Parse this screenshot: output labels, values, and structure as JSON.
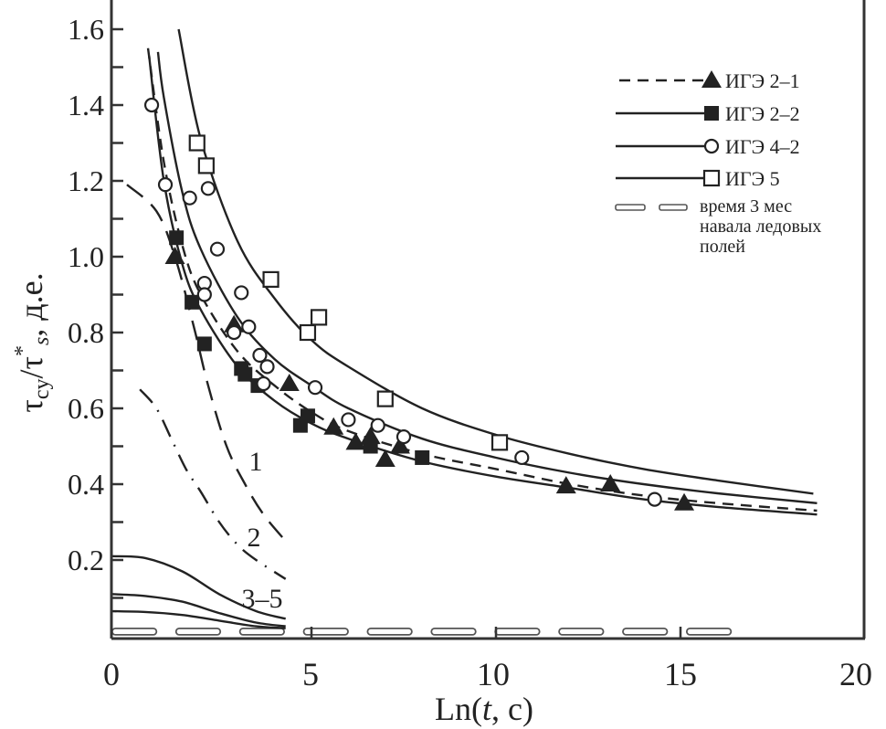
{
  "chart_data": {
    "type": "scatter",
    "xlabel": "Ln(t, с)",
    "ylabel_parts": [
      "τ",
      "cy",
      "/τ",
      "*",
      "s",
      ", д.е."
    ],
    "xlim": [
      0,
      20
    ],
    "ylim": [
      0,
      1.6
    ],
    "x_ticks": [
      "0",
      "5",
      "10",
      "15",
      "20"
    ],
    "y_ticks": [
      "0.2",
      "0.4",
      "0.6",
      "0.8",
      "1.0",
      "1.2",
      "1.4",
      "1.6"
    ],
    "grid": false,
    "legend_position": "top-right",
    "legend": [
      {
        "label": "ИГЭ 2–1",
        "marker": "filled-triangle",
        "line": "dashed"
      },
      {
        "label": "ИГЭ 2–2",
        "marker": "filled-square",
        "line": "solid"
      },
      {
        "label": "ИГЭ 4–2",
        "marker": "open-circle",
        "line": "solid"
      },
      {
        "label": "ИГЭ 5",
        "marker": "open-square",
        "line": "solid"
      },
      {
        "label": "время 3 мес навала ледовых полей",
        "label_lines": [
          "время 3 мес",
          "навала ледовых",
          "полей"
        ],
        "line": "double-dashed"
      }
    ],
    "series": [
      {
        "name": "ИГЭ 2–1",
        "marker": "filled-triangle",
        "points": [
          [
            1.3,
            1.0
          ],
          [
            2.9,
            0.82
          ],
          [
            4.4,
            0.665
          ],
          [
            5.6,
            0.55
          ],
          [
            6.2,
            0.51
          ],
          [
            6.6,
            0.525
          ],
          [
            7.0,
            0.465
          ],
          [
            7.4,
            0.5
          ],
          [
            11.9,
            0.395
          ],
          [
            13.1,
            0.4
          ],
          [
            15.1,
            0.35
          ]
        ],
        "fit": {
          "style": "dashed",
          "points": [
            [
              0.57,
              1.55
            ],
            [
              1,
              1.25
            ],
            [
              1.5,
              1.03
            ],
            [
              2,
              0.9
            ],
            [
              3,
              0.75
            ],
            [
              4,
              0.66
            ],
            [
              5,
              0.59
            ],
            [
              6,
              0.54
            ],
            [
              8,
              0.48
            ],
            [
              10,
              0.44
            ],
            [
              12,
              0.4
            ],
            [
              14,
              0.37
            ],
            [
              16,
              0.35
            ],
            [
              18.7,
              0.33
            ]
          ]
        }
      },
      {
        "name": "ИГЭ 2–2",
        "marker": "filled-square",
        "points": [
          [
            1.34,
            1.05
          ],
          [
            1.76,
            0.88
          ],
          [
            2.1,
            0.77
          ],
          [
            3.1,
            0.705
          ],
          [
            3.2,
            0.69
          ],
          [
            3.55,
            0.66
          ],
          [
            4.7,
            0.555
          ],
          [
            4.9,
            0.58
          ],
          [
            6.6,
            0.5
          ],
          [
            8.0,
            0.47
          ]
        ],
        "fit": {
          "style": "solid",
          "points": [
            [
              0.6,
              1.53
            ],
            [
              1,
              1.2
            ],
            [
              1.5,
              0.98
            ],
            [
              2,
              0.86
            ],
            [
              3,
              0.71
            ],
            [
              4,
              0.62
            ],
            [
              5,
              0.56
            ],
            [
              6,
              0.52
            ],
            [
              8,
              0.46
            ],
            [
              10,
              0.42
            ],
            [
              12,
              0.39
            ],
            [
              14,
              0.36
            ],
            [
              16,
              0.34
            ],
            [
              18.7,
              0.32
            ]
          ]
        }
      },
      {
        "name": "ИГЭ 4–2",
        "marker": "open-circle",
        "points": [
          [
            0.67,
            1.4
          ],
          [
            1.04,
            1.19
          ],
          [
            1.7,
            1.155
          ],
          [
            2.2,
            1.18
          ],
          [
            2.45,
            1.02
          ],
          [
            2.1,
            0.93
          ],
          [
            2.1,
            0.9
          ],
          [
            3.1,
            0.905
          ],
          [
            2.9,
            0.8
          ],
          [
            3.3,
            0.815
          ],
          [
            3.6,
            0.74
          ],
          [
            3.8,
            0.71
          ],
          [
            3.7,
            0.665
          ],
          [
            5.1,
            0.655
          ],
          [
            6.0,
            0.57
          ],
          [
            6.8,
            0.555
          ],
          [
            7.5,
            0.525
          ],
          [
            10.7,
            0.47
          ],
          [
            14.3,
            0.36
          ]
        ],
        "fit": {
          "style": "solid",
          "points": [
            [
              0.84,
              1.54
            ],
            [
              1,
              1.42
            ],
            [
              1.5,
              1.17
            ],
            [
              2,
              1.02
            ],
            [
              3,
              0.84
            ],
            [
              4,
              0.73
            ],
            [
              5,
              0.66
            ],
            [
              6,
              0.6
            ],
            [
              8,
              0.52
            ],
            [
              10,
              0.47
            ],
            [
              12,
              0.43
            ],
            [
              14,
              0.4
            ],
            [
              16,
              0.376
            ],
            [
              18.7,
              0.35
            ]
          ]
        }
      },
      {
        "name": "ИГЭ 5",
        "marker": "open-square",
        "points": [
          [
            1.9,
            1.3
          ],
          [
            2.15,
            1.24
          ],
          [
            3.9,
            0.94
          ],
          [
            4.9,
            0.8
          ],
          [
            5.2,
            0.84
          ],
          [
            7.0,
            0.625
          ],
          [
            10.1,
            0.51
          ]
        ],
        "fit": {
          "style": "solid",
          "points": [
            [
              1.4,
              1.6
            ],
            [
              2,
              1.31
            ],
            [
              3,
              1.04
            ],
            [
              4,
              0.89
            ],
            [
              5,
              0.78
            ],
            [
              6,
              0.71
            ],
            [
              8,
              0.6
            ],
            [
              10,
              0.53
            ],
            [
              12,
              0.48
            ],
            [
              14,
              0.44
            ],
            [
              16,
              0.41
            ],
            [
              18.6,
              0.375
            ]
          ]
        }
      }
    ],
    "model_curves": [
      {
        "label": "1",
        "style": "long-dashed",
        "points": [
          [
            0,
            1.19
          ],
          [
            0.8,
            1.12
          ],
          [
            1.3,
            1.0
          ],
          [
            1.8,
            0.82
          ],
          [
            2.2,
            0.66
          ],
          [
            2.7,
            0.5
          ],
          [
            3.2,
            0.4
          ],
          [
            3.7,
            0.32
          ],
          [
            4.3,
            0.25
          ]
        ]
      },
      {
        "label": "2",
        "style": "dash-dot",
        "points": [
          [
            0.35,
            0.65
          ],
          [
            0.8,
            0.6
          ],
          [
            1.2,
            0.52
          ],
          [
            1.6,
            0.44
          ],
          [
            2,
            0.38
          ],
          [
            2.5,
            0.3
          ],
          [
            3,
            0.24
          ],
          [
            3.5,
            0.2
          ],
          [
            4.3,
            0.15
          ]
        ]
      },
      {
        "label": "3–5",
        "style": "solid",
        "curves": [
          [
            [
              -0.4,
              0.21
            ],
            [
              0.5,
              0.205
            ],
            [
              1.5,
              0.17
            ],
            [
              2.5,
              0.11
            ],
            [
              3.5,
              0.065
            ],
            [
              4.3,
              0.045
            ]
          ],
          [
            [
              -0.4,
              0.11
            ],
            [
              0.5,
              0.105
            ],
            [
              1.5,
              0.09
            ],
            [
              2.5,
              0.06
            ],
            [
              3.5,
              0.035
            ],
            [
              4.3,
              0.025
            ]
          ],
          [
            [
              -0.4,
              0.065
            ],
            [
              0.5,
              0.063
            ],
            [
              1.5,
              0.055
            ],
            [
              2.5,
              0.04
            ],
            [
              3.5,
              0.025
            ],
            [
              4.3,
              0.02
            ]
          ]
        ]
      }
    ],
    "time_3_months_line": {
      "y": 0.01,
      "x_range": [
        -0.4,
        16.4
      ]
    },
    "colors": {
      "ink": "#222222",
      "background": "#ffffff",
      "double_line": "#555555"
    }
  }
}
